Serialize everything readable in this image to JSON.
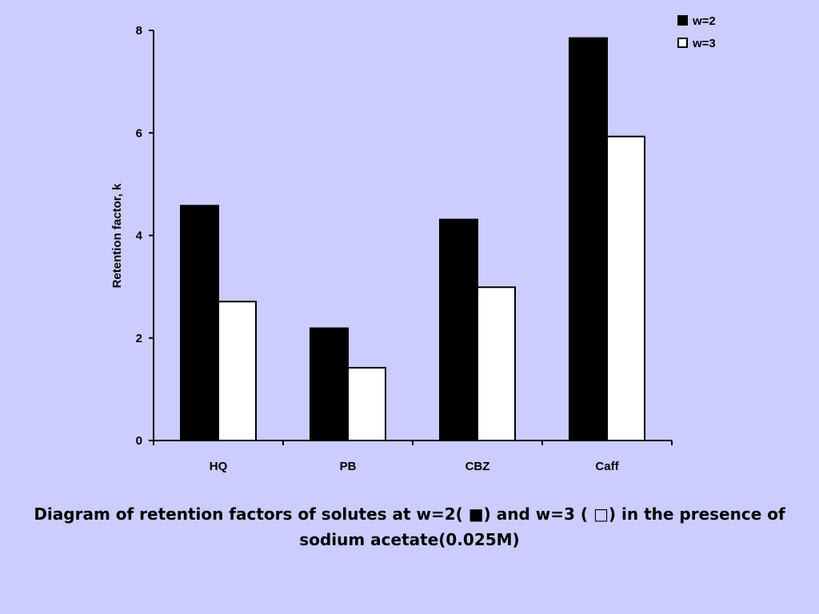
{
  "chart_data": {
    "type": "bar",
    "categories": [
      "HQ",
      "PB",
      "CBZ",
      "Caff"
    ],
    "series": [
      {
        "name": "w=2",
        "color": "#000000",
        "values": [
          4.58,
          2.19,
          4.31,
          7.85
        ]
      },
      {
        "name": "w=3",
        "color": "#ffffff",
        "values": [
          2.71,
          1.42,
          2.99,
          5.93
        ]
      }
    ],
    "ylabel": "Retention factor, k",
    "xlabel": "",
    "ylim": [
      0,
      8
    ],
    "yticks": [
      0,
      2,
      4,
      6,
      8
    ],
    "grid": false,
    "legend_position": "top-right"
  },
  "caption": {
    "line1": "Diagram of retention factors of solutes at w=2( ■)  and w=3 ( □) in the presence of",
    "line2": "sodium acetate(0.025M)"
  },
  "colors": {
    "background": "#ccccff",
    "bar_outline": "#000000"
  }
}
